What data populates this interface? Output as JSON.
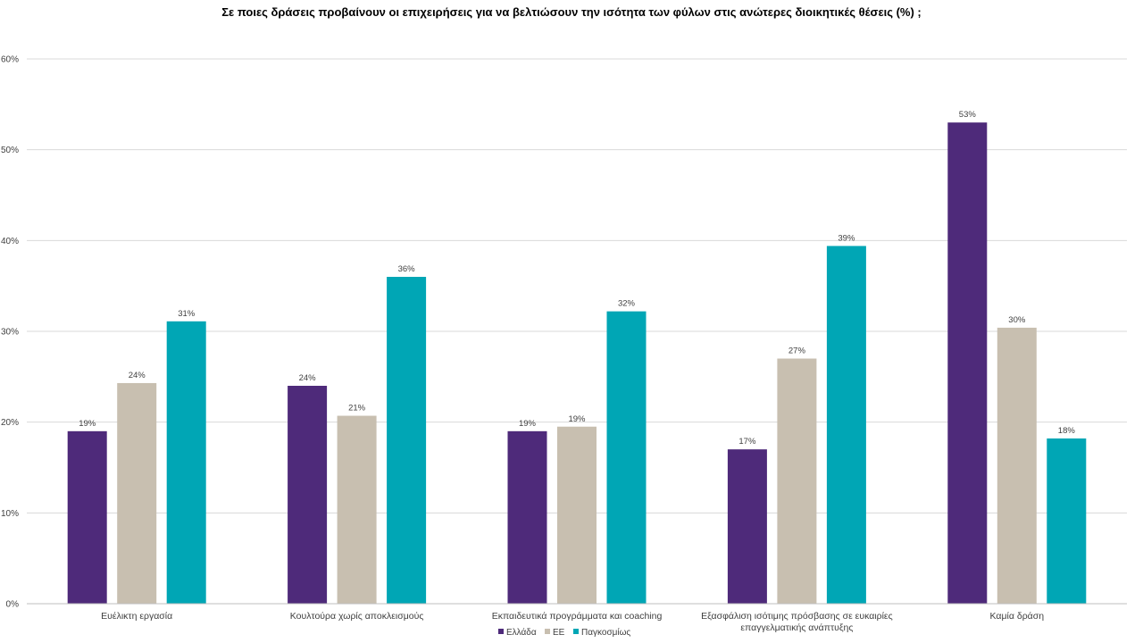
{
  "chart_data": {
    "type": "bar",
    "title": "Σε ποιες δράσεις προβαίνουν οι επιχειρήσεις για να βελτιώσουν την ισότητα των φύλων στις ανώτερες διοικητικές θέσεις (%) ;",
    "xlabel": "",
    "ylabel": "",
    "ylim": [
      0,
      60
    ],
    "yticks": [
      0,
      10,
      20,
      30,
      40,
      50,
      60
    ],
    "ytick_labels": [
      "0%",
      "10%",
      "20%",
      "30%",
      "40%",
      "50%",
      "60%"
    ],
    "grid": true,
    "legend_position": "bottom",
    "categories": [
      [
        "Ευέλικτη εργασία"
      ],
      [
        "Κουλτούρα χωρίς αποκλεισμούς"
      ],
      [
        "Εκπαιδευτικά προγράμματα και coaching"
      ],
      [
        "Εξασφάλιση ισότιμης πρόσβασης σε ευκαιρίες",
        "επαγγελματικής ανάπτυξης"
      ],
      [
        "Καμία δράση"
      ]
    ],
    "series": [
      {
        "name": "Ελλάδα",
        "color": "#4e2a7a",
        "values": [
          19,
          24,
          19,
          17,
          53
        ],
        "labels": [
          "19%",
          "24%",
          "19%",
          "17%",
          "53%"
        ]
      },
      {
        "name": "ΕΕ",
        "color": "#c8bfb0",
        "values": [
          24.3,
          20.7,
          19.5,
          27,
          30.4
        ],
        "labels": [
          "24%",
          "21%",
          "19%",
          "27%",
          "30%"
        ]
      },
      {
        "name": "Παγκοσμίως",
        "color": "#00a6b5",
        "values": [
          31.1,
          36,
          32.2,
          39.4,
          18.2
        ],
        "labels": [
          "31%",
          "36%",
          "32%",
          "39%",
          "18%"
        ]
      }
    ]
  }
}
